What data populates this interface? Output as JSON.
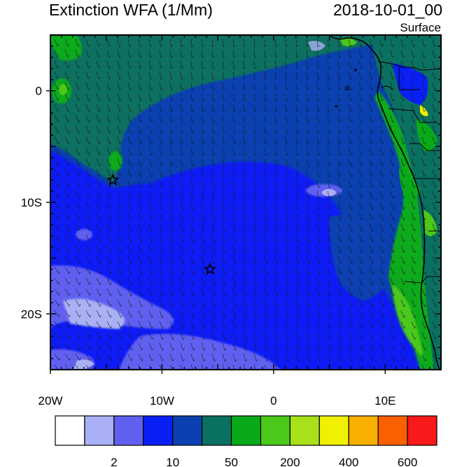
{
  "header": {
    "title": "Extinction WFA (1/Mm)",
    "datetime": "2018-10-01_00",
    "level": "Surface"
  },
  "map": {
    "lon_range": [
      -20,
      15
    ],
    "lat_range": [
      -25,
      5
    ],
    "x_ticks": [
      {
        "lon": -20,
        "label": "20W"
      },
      {
        "lon": -10,
        "label": "10W"
      },
      {
        "lon": 0,
        "label": "0"
      },
      {
        "lon": 10,
        "label": "10E"
      }
    ],
    "y_ticks": [
      {
        "lat": 0,
        "label": "0"
      },
      {
        "lat": -10,
        "label": "10S"
      },
      {
        "lat": -20,
        "label": "20S"
      }
    ],
    "stations": [
      {
        "name": "station-star-1",
        "lon": -14.4,
        "lat": -8.0
      },
      {
        "name": "station-star-2",
        "lon": -5.7,
        "lat": -16.0
      }
    ],
    "wind_vectors": "wind barbs overlay"
  },
  "colorbar": {
    "colors": [
      "#ffffff",
      "#aab0f5",
      "#6060f0",
      "#0a1ff5",
      "#0a40b0",
      "#0a7060",
      "#08aa1a",
      "#4cc81a",
      "#a8e01a",
      "#f0f000",
      "#f8b000",
      "#f86000",
      "#f81a1a"
    ],
    "labels": [
      {
        "after_box": 1,
        "text": "2"
      },
      {
        "after_box": 3,
        "text": "10"
      },
      {
        "after_box": 5,
        "text": "50"
      },
      {
        "after_box": 7,
        "text": "200"
      },
      {
        "after_box": 9,
        "text": "400"
      },
      {
        "after_box": 11,
        "text": "600"
      }
    ]
  }
}
